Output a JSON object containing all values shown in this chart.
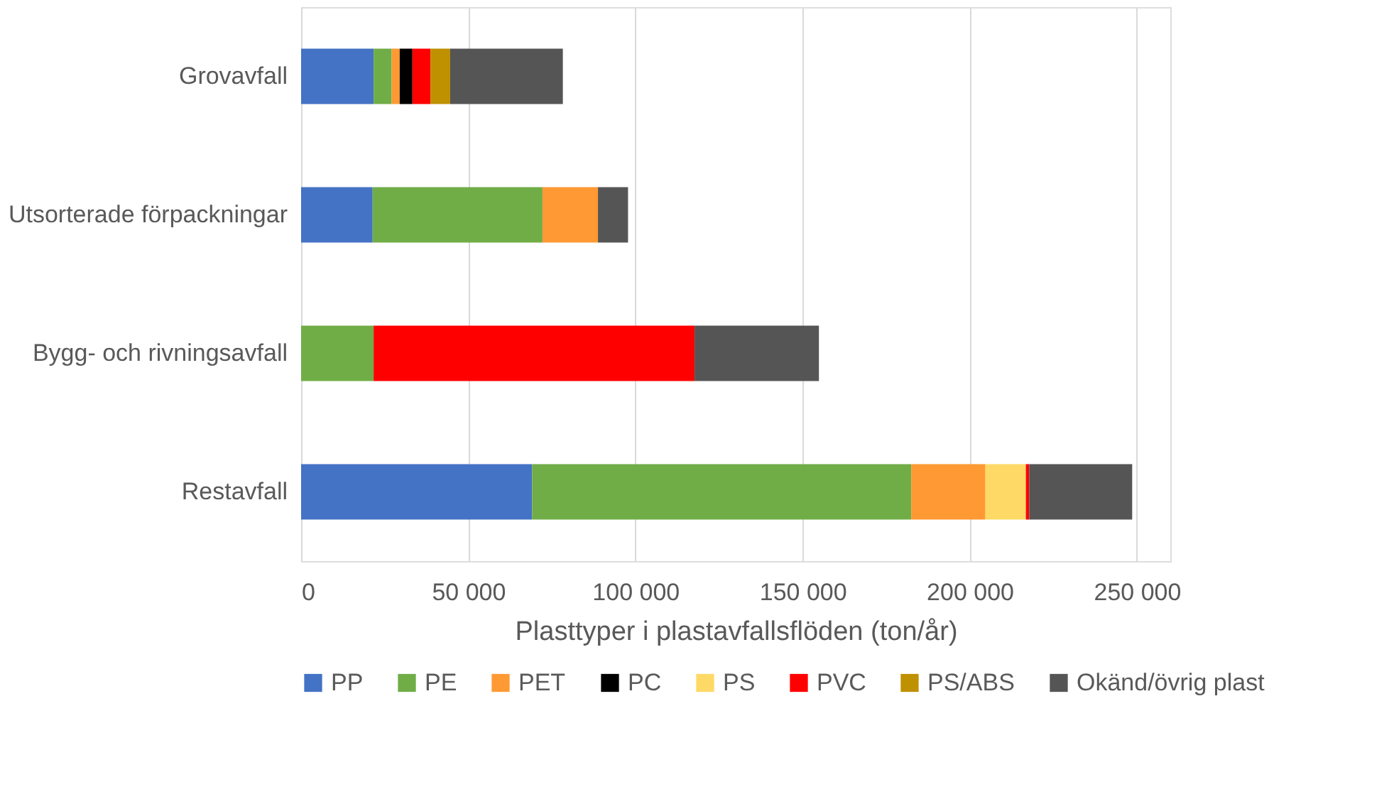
{
  "chart_data": {
    "type": "bar",
    "orientation": "horizontal",
    "stacked": true,
    "categories": [
      "Grovavfall",
      "Utsorterade förpackningar",
      "Bygg- och rivningsavfall",
      "Restavfall"
    ],
    "series": [
      {
        "name": "PP",
        "color": "#4472c4",
        "values": [
          21700,
          21400,
          null,
          69100
        ]
      },
      {
        "name": "PE",
        "color": "#70ad47",
        "values": [
          5400,
          50800,
          21700,
          113400
        ]
      },
      {
        "name": "PET",
        "color": "#ff9933",
        "values": [
          2400,
          16600,
          null,
          22200
        ]
      },
      {
        "name": "PC",
        "color": "#000000",
        "values": [
          3800,
          null,
          null,
          null
        ]
      },
      {
        "name": "PS",
        "color": "#ffd966",
        "values": [
          null,
          null,
          null,
          12100
        ]
      },
      {
        "name": "PVC",
        "color": "#ff0000",
        "values": [
          5400,
          null,
          96000,
          1000
        ]
      },
      {
        "name": "PS/ABS",
        "color": "#bf9000",
        "values": [
          5900,
          null,
          null,
          null
        ]
      },
      {
        "name": "Okänd/övrig plast",
        "color": "#555555",
        "values": [
          33700,
          9000,
          37200,
          30800
        ]
      }
    ],
    "xlabel": "Plasttyper i plastavfallsflöden (ton/år)",
    "xlim": [
      0,
      260000
    ],
    "xticks": [
      0,
      {
        "value": 50000,
        "label": "50 000"
      },
      {
        "value": 100000,
        "label": "100 000"
      },
      {
        "value": 150000,
        "label": "150 000"
      },
      {
        "value": 200000,
        "label": "200 000"
      },
      {
        "value": 250000,
        "label": "250 000"
      }
    ],
    "grid": "x",
    "legend": "bottom"
  }
}
